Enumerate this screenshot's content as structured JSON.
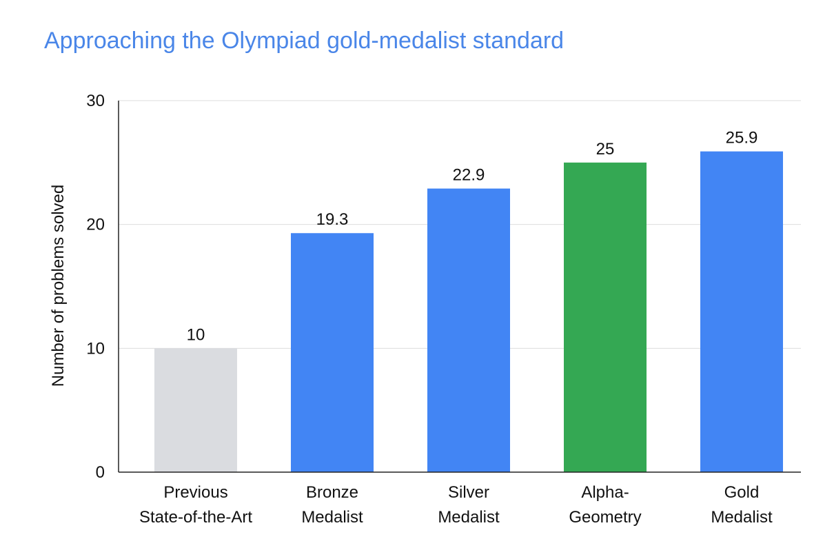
{
  "chart_data": {
    "type": "bar",
    "title": "Approaching the Olympiad gold-medalist standard",
    "xlabel": "",
    "ylabel": "Number of problems solved",
    "ylim": [
      0,
      30
    ],
    "yticks": [
      "0",
      "10",
      "20",
      "30"
    ],
    "grid": true,
    "categories": [
      [
        "Previous",
        "State-of-the-Art"
      ],
      [
        "Bronze",
        "Medalist"
      ],
      [
        "Silver",
        "Medalist"
      ],
      [
        "Alpha-",
        "Geometry"
      ],
      [
        "Gold",
        "Medalist"
      ]
    ],
    "values": [
      10,
      19.3,
      22.9,
      25,
      25.9
    ],
    "value_labels": [
      "10",
      "19.3",
      "22.9",
      "25",
      "25.9"
    ],
    "colors": [
      "#dadce0",
      "#4285f4",
      "#4285f4",
      "#34a853",
      "#4285f4"
    ]
  }
}
